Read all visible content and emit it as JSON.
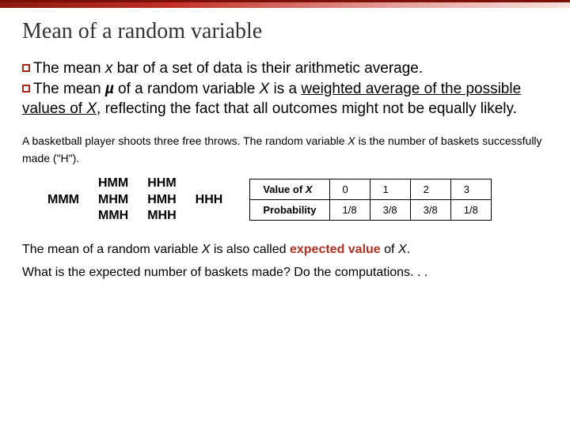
{
  "title": "Mean of a random variable",
  "para1_a": "The mean ",
  "para1_xbar": "x",
  "para1_b": " bar of a set of data is their arithmetic average.",
  "para2_a": "The mean ",
  "para2_mu": "µ",
  "para2_b": " of a random variable ",
  "para2_X": "X",
  "para2_c": " is a ",
  "para2_weighted": "weighted average of the possible values of ",
  "para2_X2": "X",
  "para2_d": ", reflecting the fact that all outcomes might not be equally likely.",
  "example_a": "A basketball player shoots three free throws. The random variable ",
  "example_X": "X",
  "example_b": " is the number of baskets successfully made (\"H\").",
  "outcomes": {
    "col0": "MMM",
    "col1a": "HMM",
    "col1b": "MHM",
    "col1c": "MMH",
    "col2a": "HHM",
    "col2b": "HMH",
    "col2c": "MHH",
    "col3": "HHH"
  },
  "table": {
    "row1_label": "Value of ",
    "row1_X": "X",
    "v0": "0",
    "v1": "1",
    "v2": "2",
    "v3": "3",
    "row2_label": "Probability",
    "p0": "1/8",
    "p1": "3/8",
    "p2": "3/8",
    "p3": "1/8"
  },
  "footer1_a": "The mean of a random variable ",
  "footer1_X": "X",
  "footer1_b": " is also called ",
  "footer1_exp": "expected value",
  "footer1_c": " of ",
  "footer1_X2": "X",
  "footer1_d": ".",
  "footer2": "What is the expected number of baskets made?  Do the computations. . .",
  "colors": {
    "accent": "#a52a1a",
    "red_bold": "#b03020"
  }
}
